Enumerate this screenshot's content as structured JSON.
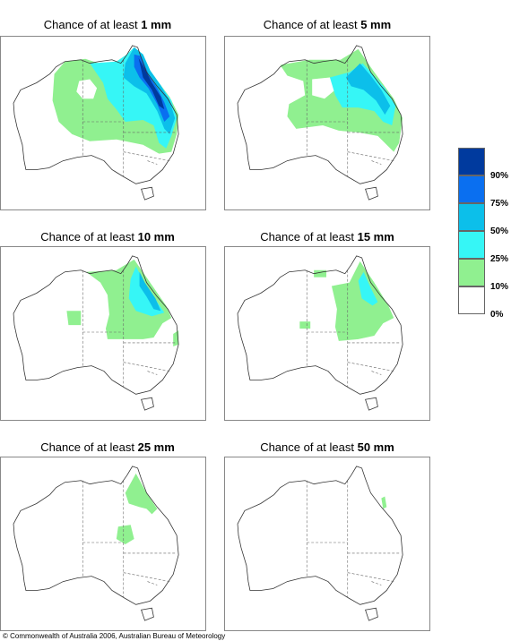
{
  "title_prefix": "Chance of at least",
  "panels": [
    {
      "amount": "1 mm"
    },
    {
      "amount": "5 mm"
    },
    {
      "amount": "10 mm"
    },
    {
      "amount": "15 mm"
    },
    {
      "amount": "25 mm"
    },
    {
      "amount": "50 mm"
    }
  ],
  "legend": {
    "labels": [
      "90%",
      "75%",
      "50%",
      "25%",
      "10%",
      "0%"
    ],
    "colors": [
      "#003a9e",
      "#0a6ff0",
      "#0cbfea",
      "#36f6f6",
      "#90f090",
      "#ffffff"
    ]
  },
  "copyright": "© Commonwealth of Australia 2006, Australian Bureau of Meteorology"
}
